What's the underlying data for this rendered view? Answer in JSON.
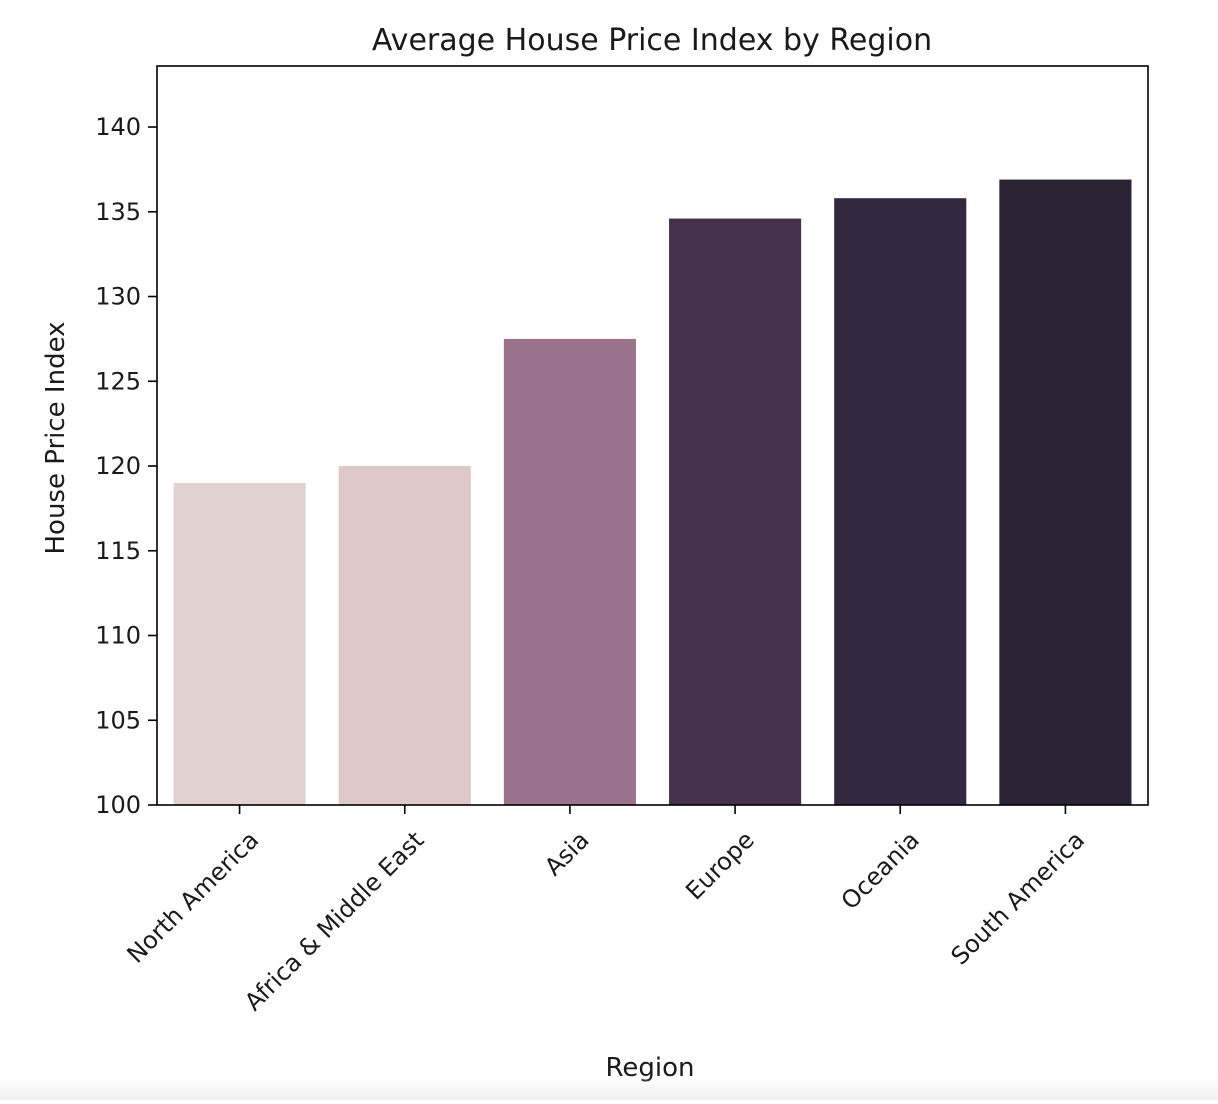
{
  "chart_data": {
    "type": "bar",
    "title": "Average House Price Index by Region",
    "xlabel": "Region",
    "ylabel": "House Price Index",
    "categories": [
      "North America",
      "Africa & Middle East",
      "Asia",
      "Europe",
      "Oceania",
      "South America"
    ],
    "values": [
      119.0,
      120.0,
      127.5,
      134.6,
      135.8,
      136.9
    ],
    "colors": [
      "#e2d2d1",
      "#dfc9c8",
      "#9c738d",
      "#46324f",
      "#342740",
      "#2b2234"
    ],
    "ylim": [
      100,
      143.6
    ],
    "yticks": [
      100,
      105,
      110,
      115,
      120,
      125,
      130,
      135,
      140
    ],
    "xtick_rotation": 45,
    "grid": false,
    "legend": false
  }
}
